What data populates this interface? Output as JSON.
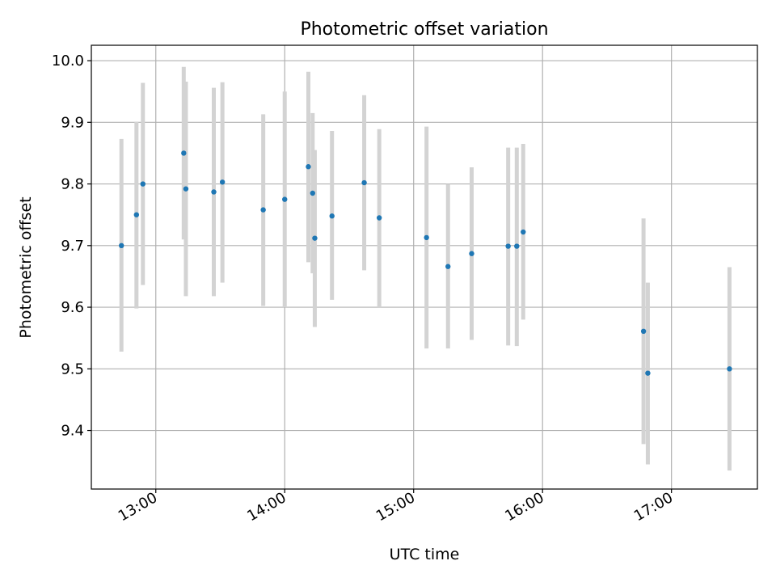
{
  "chart_data": {
    "type": "scatter",
    "title": "Photometric offset variation",
    "xlabel": "UTC time",
    "ylabel": "Photometric offset",
    "x_ticks": [
      "13:00",
      "14:00",
      "15:00",
      "16:00",
      "17:00"
    ],
    "y_ticks": [
      "9.4",
      "9.5",
      "9.6",
      "9.7",
      "9.8",
      "9.9",
      "10.0"
    ],
    "xlim": [
      "12:30",
      "17:40"
    ],
    "ylim": [
      9.305,
      10.025
    ],
    "grid": true,
    "error_bar_color": "#d3d3d3",
    "point_color": "#1f77b4",
    "series": [
      {
        "points": [
          {
            "x": "12:44",
            "y": 9.7,
            "ylow": 9.528,
            "yhigh": 9.873
          },
          {
            "x": "12:51",
            "y": 9.75,
            "ylow": 9.598,
            "yhigh": 9.901
          },
          {
            "x": "12:54",
            "y": 9.8,
            "ylow": 9.636,
            "yhigh": 9.964
          },
          {
            "x": "13:13",
            "y": 9.85,
            "ylow": 9.71,
            "yhigh": 9.99
          },
          {
            "x": "13:14",
            "y": 9.792,
            "ylow": 9.618,
            "yhigh": 9.966
          },
          {
            "x": "13:27",
            "y": 9.787,
            "ylow": 9.618,
            "yhigh": 9.956
          },
          {
            "x": "13:31",
            "y": 9.803,
            "ylow": 9.64,
            "yhigh": 9.965
          },
          {
            "x": "13:50",
            "y": 9.758,
            "ylow": 9.602,
            "yhigh": 9.913
          },
          {
            "x": "14:00",
            "y": 9.775,
            "ylow": 9.6,
            "yhigh": 9.95
          },
          {
            "x": "14:11",
            "y": 9.828,
            "ylow": 9.673,
            "yhigh": 9.982
          },
          {
            "x": "14:13",
            "y": 9.785,
            "ylow": 9.655,
            "yhigh": 9.915
          },
          {
            "x": "14:14",
            "y": 9.712,
            "ylow": 9.568,
            "yhigh": 9.855
          },
          {
            "x": "14:22",
            "y": 9.748,
            "ylow": 9.612,
            "yhigh": 9.886
          },
          {
            "x": "14:37",
            "y": 9.802,
            "ylow": 9.66,
            "yhigh": 9.944
          },
          {
            "x": "14:44",
            "y": 9.745,
            "ylow": 9.6,
            "yhigh": 9.889
          },
          {
            "x": "15:06",
            "y": 9.713,
            "ylow": 9.533,
            "yhigh": 9.893
          },
          {
            "x": "15:16",
            "y": 9.666,
            "ylow": 9.533,
            "yhigh": 9.8
          },
          {
            "x": "15:27",
            "y": 9.687,
            "ylow": 9.547,
            "yhigh": 9.827
          },
          {
            "x": "15:44",
            "y": 9.699,
            "ylow": 9.538,
            "yhigh": 9.859
          },
          {
            "x": "15:48",
            "y": 9.699,
            "ylow": 9.537,
            "yhigh": 9.859
          },
          {
            "x": "15:51",
            "y": 9.722,
            "ylow": 9.58,
            "yhigh": 9.865
          },
          {
            "x": "16:47",
            "y": 9.561,
            "ylow": 9.378,
            "yhigh": 9.744
          },
          {
            "x": "16:49",
            "y": 9.493,
            "ylow": 9.345,
            "yhigh": 9.64
          },
          {
            "x": "17:27",
            "y": 9.5,
            "ylow": 9.335,
            "yhigh": 9.665
          }
        ]
      }
    ]
  }
}
